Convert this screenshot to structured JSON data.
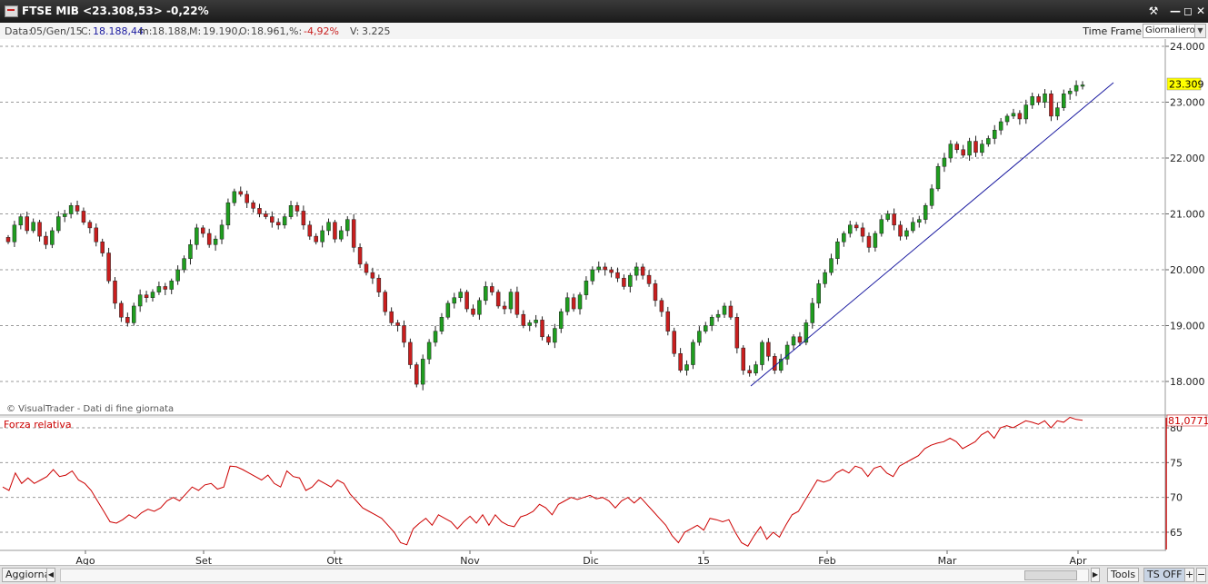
{
  "window": {
    "title": "FTSE MIB <23.308,53>  -0,22%"
  },
  "infobar": {
    "date_label": "Data:",
    "date_value": "05/Gen/15",
    "close_label": "C:",
    "close_value": "18.188,44",
    "min_label": "m:",
    "min_value": "18.188,",
    "max_label": "M:",
    "max_value": "19.190,",
    "open_label": "O:",
    "open_value": "18.961,",
    "pct_label": "%:",
    "pct_value": "-4,92%",
    "vol_label": "V:",
    "vol_value": "3.225",
    "timeframe_label": "Time Frame",
    "timeframe_value": "Giornaliero"
  },
  "price_panel": {
    "y_ticks": [
      "24.000",
      "23.000",
      "22.000",
      "21.000",
      "20.000",
      "19.000",
      "18.000"
    ],
    "last_value_label": "23.309",
    "watermark": "© VisualTrader - Dati di fine giornata"
  },
  "rsi_panel": {
    "title": "Forza relativa",
    "y_ticks": [
      "80",
      "75",
      "70",
      "65"
    ],
    "last_value_label": "81,0771"
  },
  "x_axis": {
    "labels": [
      "Ago",
      "Set",
      "Ott",
      "Nov",
      "Dic",
      "15",
      "Feb",
      "Mar",
      "Apr"
    ]
  },
  "bottombar": {
    "update_button": "Aggiorna",
    "tools_button": "Tools",
    "ts_button": "TS OFF"
  },
  "colors": {
    "up_candle": "#1f9d1f",
    "down_candle": "#c81e1e",
    "trendline": "#1a1aa0",
    "rsi_line": "#cc0000",
    "last_price_bg": "#ffff00"
  },
  "chart_data": [
    {
      "type": "candlestick",
      "title": "FTSE MIB",
      "ylim": [
        17600,
        24100
      ],
      "x_labels": [
        "Ago",
        "Set",
        "Ott",
        "Nov",
        "Dic",
        "15",
        "Feb",
        "Mar",
        "Apr"
      ],
      "close": [
        20500,
        20800,
        20950,
        20700,
        20850,
        20600,
        20450,
        20700,
        20950,
        21000,
        21150,
        21050,
        20850,
        20750,
        20500,
        20300,
        19800,
        19400,
        19150,
        19050,
        19350,
        19550,
        19500,
        19600,
        19700,
        19650,
        19800,
        20000,
        20200,
        20450,
        20750,
        20650,
        20450,
        20550,
        20800,
        21200,
        21400,
        21350,
        21200,
        21100,
        21000,
        20950,
        20850,
        20800,
        20950,
        21150,
        21050,
        20800,
        20600,
        20500,
        20700,
        20850,
        20550,
        20700,
        20900,
        20400,
        20100,
        19950,
        19850,
        19600,
        19250,
        19050,
        19000,
        18700,
        18300,
        17950,
        18400,
        18700,
        18900,
        19150,
        19400,
        19500,
        19600,
        19300,
        19200,
        19450,
        19700,
        19600,
        19350,
        19300,
        19600,
        19200,
        19000,
        19050,
        19100,
        18800,
        18700,
        18950,
        19250,
        19500,
        19300,
        19550,
        19800,
        20000,
        20050,
        20000,
        19950,
        19850,
        19700,
        19900,
        20050,
        19900,
        19750,
        19450,
        19250,
        18900,
        18500,
        18200,
        18300,
        18700,
        18900,
        19000,
        19150,
        19200,
        19350,
        19150,
        18600,
        18200,
        18150,
        18300,
        18700,
        18450,
        18200,
        18400,
        18650,
        18800,
        18700,
        19050,
        19400,
        19750,
        19950,
        20200,
        20500,
        20650,
        20800,
        20750,
        20600,
        20400,
        20650,
        20900,
        21000,
        20800,
        20600,
        20700,
        20850,
        20900,
        21150,
        21450,
        21850,
        22000,
        22250,
        22150,
        22050,
        22300,
        22100,
        22250,
        22350,
        22500,
        22650,
        22750,
        22800,
        22700,
        22950,
        23100,
        23000,
        23150,
        22750,
        22900,
        23150,
        23200,
        23300,
        23309
      ],
      "y_ticks": [
        24000,
        23000,
        22000,
        21000,
        20000,
        19000,
        18000
      ],
      "last_value": 23309
    },
    {
      "type": "line",
      "title": "Forza relativa",
      "ylim": [
        62.5,
        81.5
      ],
      "series": [
        {
          "name": "Forza relativa",
          "values": [
            71.5,
            71.0,
            73.5,
            72.0,
            72.8,
            72.0,
            72.5,
            73.0,
            74.0,
            73.0,
            73.2,
            73.8,
            72.5,
            72.0,
            71.0,
            69.5,
            68.0,
            66.5,
            66.3,
            66.8,
            67.5,
            67.0,
            67.8,
            68.3,
            68.0,
            68.5,
            69.5,
            70.0,
            69.5,
            70.5,
            71.5,
            71.0,
            71.8,
            72.0,
            71.2,
            71.5,
            74.5,
            74.4,
            74.0,
            73.5,
            73.0,
            72.5,
            73.2,
            72.0,
            71.5,
            73.8,
            73.0,
            72.8,
            71.0,
            71.5,
            72.5,
            72.0,
            71.5,
            72.5,
            72.0,
            70.5,
            69.5,
            68.5,
            68.0,
            67.5,
            67.0,
            66.0,
            65.0,
            63.5,
            63.2,
            65.5,
            66.3,
            67.0,
            66.0,
            67.5,
            67.0,
            66.5,
            65.5,
            66.5,
            67.3,
            66.3,
            67.5,
            66.0,
            67.5,
            66.5,
            66.0,
            65.8,
            67.2,
            67.5,
            68.0,
            69.0,
            68.5,
            67.5,
            69.0,
            69.5,
            70.0,
            69.7,
            70.0,
            70.3,
            69.8,
            70.0,
            69.5,
            68.5,
            69.5,
            70.0,
            69.2,
            70.0,
            69.0,
            68.0,
            67.0,
            66.0,
            64.5,
            63.5,
            65.0,
            65.5,
            66.0,
            65.3,
            67.0,
            66.8,
            66.5,
            66.8,
            65.0,
            63.5,
            63.0,
            64.5,
            65.8,
            64.0,
            65.0,
            64.3,
            66.0,
            67.5,
            68.0,
            69.5,
            71.0,
            72.5,
            72.2,
            72.5,
            73.5,
            74.0,
            73.5,
            74.5,
            74.2,
            73.0,
            74.2,
            74.5,
            73.5,
            73.0,
            74.5,
            75.0,
            75.5,
            76.0,
            77.0,
            77.5,
            77.8,
            78.0,
            78.5,
            78.0,
            77.0,
            77.5,
            78.0,
            79.0,
            79.5,
            78.5,
            80.0,
            80.3,
            80.0,
            80.5,
            81.0,
            80.8,
            80.5,
            81.0,
            80.0,
            81.0,
            80.8,
            81.5,
            81.2,
            81.07
          ]
        }
      ],
      "y_ticks": [
        80,
        75,
        70,
        65
      ],
      "last_value": 81.0771
    }
  ]
}
